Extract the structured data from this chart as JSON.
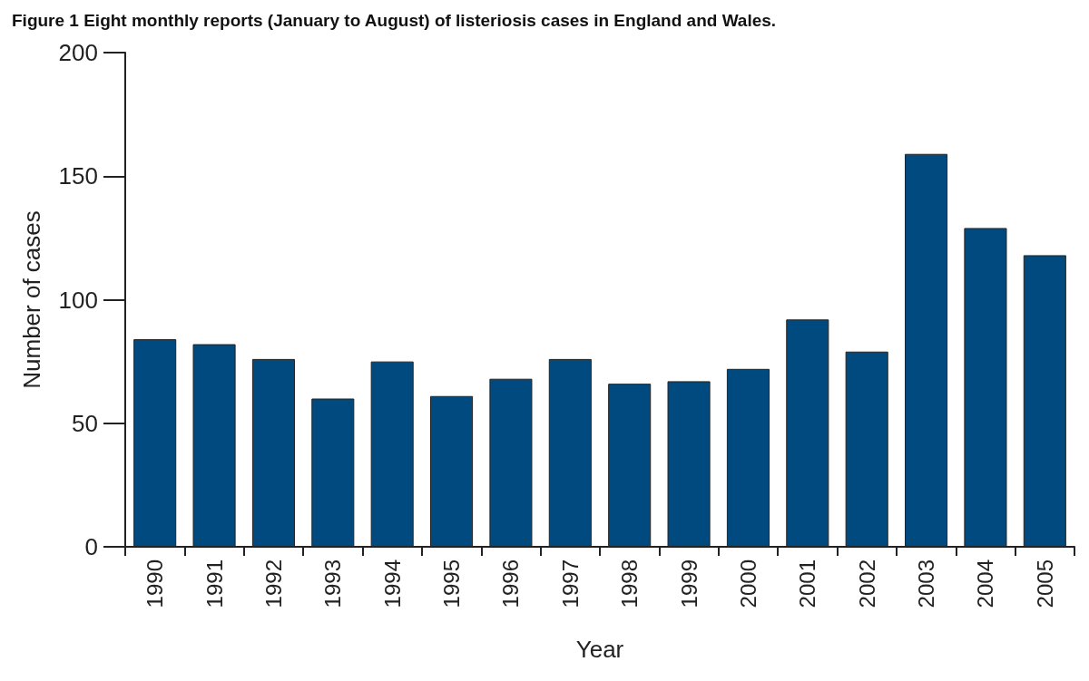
{
  "chart_data": {
    "type": "bar",
    "title": "Figure 1 Eight monthly reports (January to August) of listeriosis cases in England and Wales.",
    "xlabel": "Year",
    "ylabel": "Number of cases",
    "categories": [
      "1990",
      "1991",
      "1992",
      "1993",
      "1994",
      "1995",
      "1996",
      "1997",
      "1998",
      "1999",
      "2000",
      "2001",
      "2002",
      "2003",
      "2004",
      "2005"
    ],
    "values": [
      84,
      82,
      76,
      60,
      75,
      61,
      68,
      76,
      66,
      67,
      72,
      92,
      79,
      159,
      129,
      118
    ],
    "color": "#004a80",
    "ylim": [
      0,
      200
    ],
    "yticks": [
      0,
      50,
      100,
      150,
      200
    ]
  }
}
